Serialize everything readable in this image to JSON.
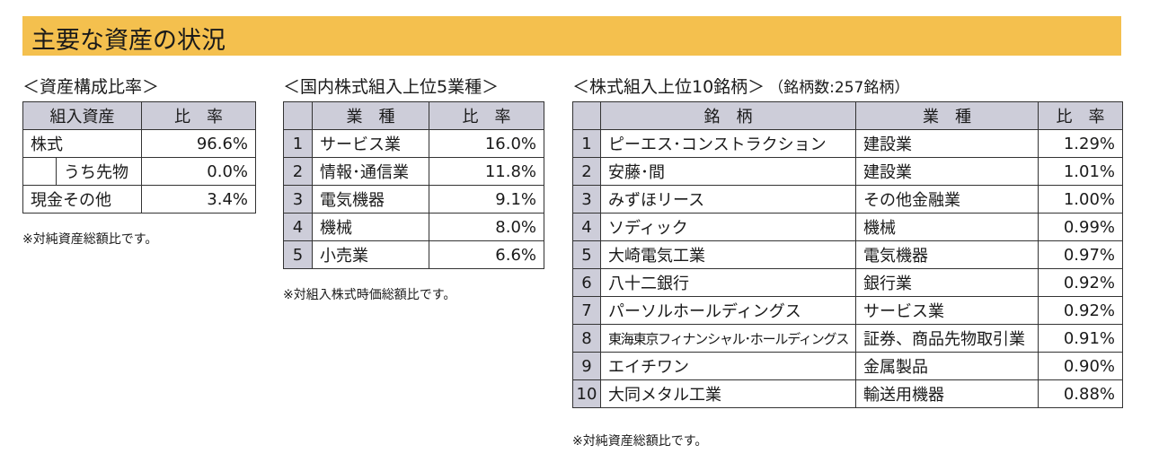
{
  "header": {
    "title": "主要な資産の状況"
  },
  "asset_allocation": {
    "title": "＜資産構成比率＞",
    "columns": [
      "組入資産",
      "比　率"
    ],
    "rows": [
      [
        "株式",
        "96.6%"
      ],
      [
        "うち先物",
        "0.0%"
      ],
      [
        "現金その他",
        "3.4%"
      ]
    ],
    "note": "※対純資産総額比です。"
  },
  "industries": {
    "title": "＜国内株式組入上位5業種＞",
    "columns": [
      "業　種",
      "比　率"
    ],
    "rows": [
      [
        "1",
        "サービス業",
        "16.0%"
      ],
      [
        "2",
        "情報･通信業",
        "11.8%"
      ],
      [
        "3",
        "電気機器",
        "9.1%"
      ],
      [
        "4",
        "機械",
        "8.0%"
      ],
      [
        "5",
        "小売業",
        "6.6%"
      ]
    ],
    "note": "※対組入株式時価総額比です。"
  },
  "holdings": {
    "title": "＜株式組入上位10銘柄＞",
    "subtitle": "（銘柄数:257銘柄）",
    "columns": [
      "銘　柄",
      "業　種",
      "比　率"
    ],
    "rows": [
      [
        "1",
        "ピーエス･コンストラクション",
        "建設業",
        "1.29%"
      ],
      [
        "2",
        "安藤･間",
        "建設業",
        "1.01%"
      ],
      [
        "3",
        "みずほリース",
        "その他金融業",
        "1.00%"
      ],
      [
        "4",
        "ソディック",
        "機械",
        "0.99%"
      ],
      [
        "5",
        "大崎電気工業",
        "電気機器",
        "0.97%"
      ],
      [
        "6",
        "八十二銀行",
        "銀行業",
        "0.92%"
      ],
      [
        "7",
        "パーソルホールディングス",
        "サービス業",
        "0.92%"
      ],
      [
        "8",
        "東海東京フィナンシャル･ホールディングス",
        "証券、商品先物取引業",
        "0.91%"
      ],
      [
        "9",
        "エイチワン",
        "金属製品",
        "0.90%"
      ],
      [
        "10",
        "大同メタル工業",
        "輸送用機器",
        "0.88%"
      ]
    ],
    "note": "※対純資産総額比です。"
  }
}
